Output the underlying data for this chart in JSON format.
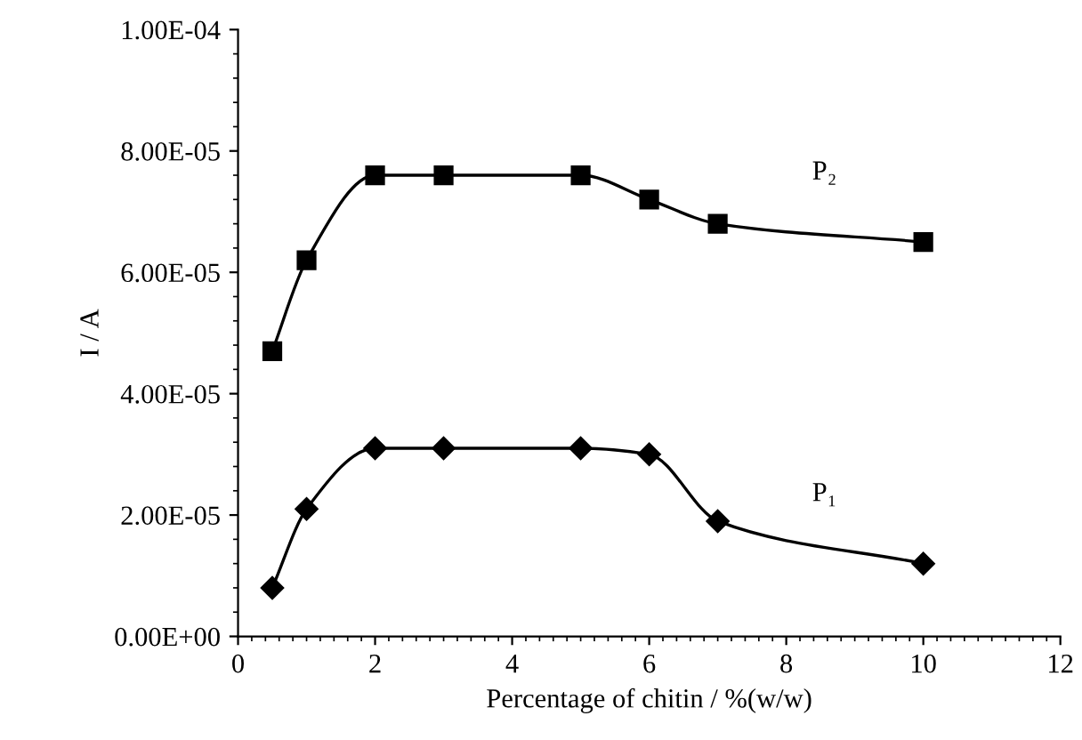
{
  "chart_data": {
    "type": "line",
    "xlabel": "Percentage of chitin / %(w/w)",
    "ylabel": "I / A",
    "x": [
      0.5,
      1,
      2,
      3,
      5,
      6,
      7,
      10
    ],
    "series": [
      {
        "name": "P₂",
        "color": "#000000",
        "marker": "square",
        "values": [
          4.7e-05,
          6.2e-05,
          7.6e-05,
          7.6e-05,
          7.6e-05,
          7.2e-05,
          6.8e-05,
          6.5e-05
        ]
      },
      {
        "name": "P₁",
        "color": "#000000",
        "marker": "diamond",
        "values": [
          8e-06,
          2.1e-05,
          3.1e-05,
          3.1e-05,
          3.1e-05,
          3e-05,
          1.9e-05,
          1.2e-05
        ]
      }
    ],
    "xlim": [
      0,
      12
    ],
    "xticks": [
      0,
      2,
      4,
      6,
      8,
      10,
      12
    ],
    "ylim": [
      0,
      0.0001
    ],
    "yticks": [
      {
        "value": 0,
        "label": "0.00E+00"
      },
      {
        "value": 2e-05,
        "label": "2.00E-05"
      },
      {
        "value": 4e-05,
        "label": "4.00E-05"
      },
      {
        "value": 6e-05,
        "label": "6.00E-05"
      },
      {
        "value": 8e-05,
        "label": "8.00E-05"
      },
      {
        "value": 0.0001,
        "label": "1.00E-04"
      }
    ],
    "grid": false,
    "legend": false,
    "line_style": "solid"
  }
}
